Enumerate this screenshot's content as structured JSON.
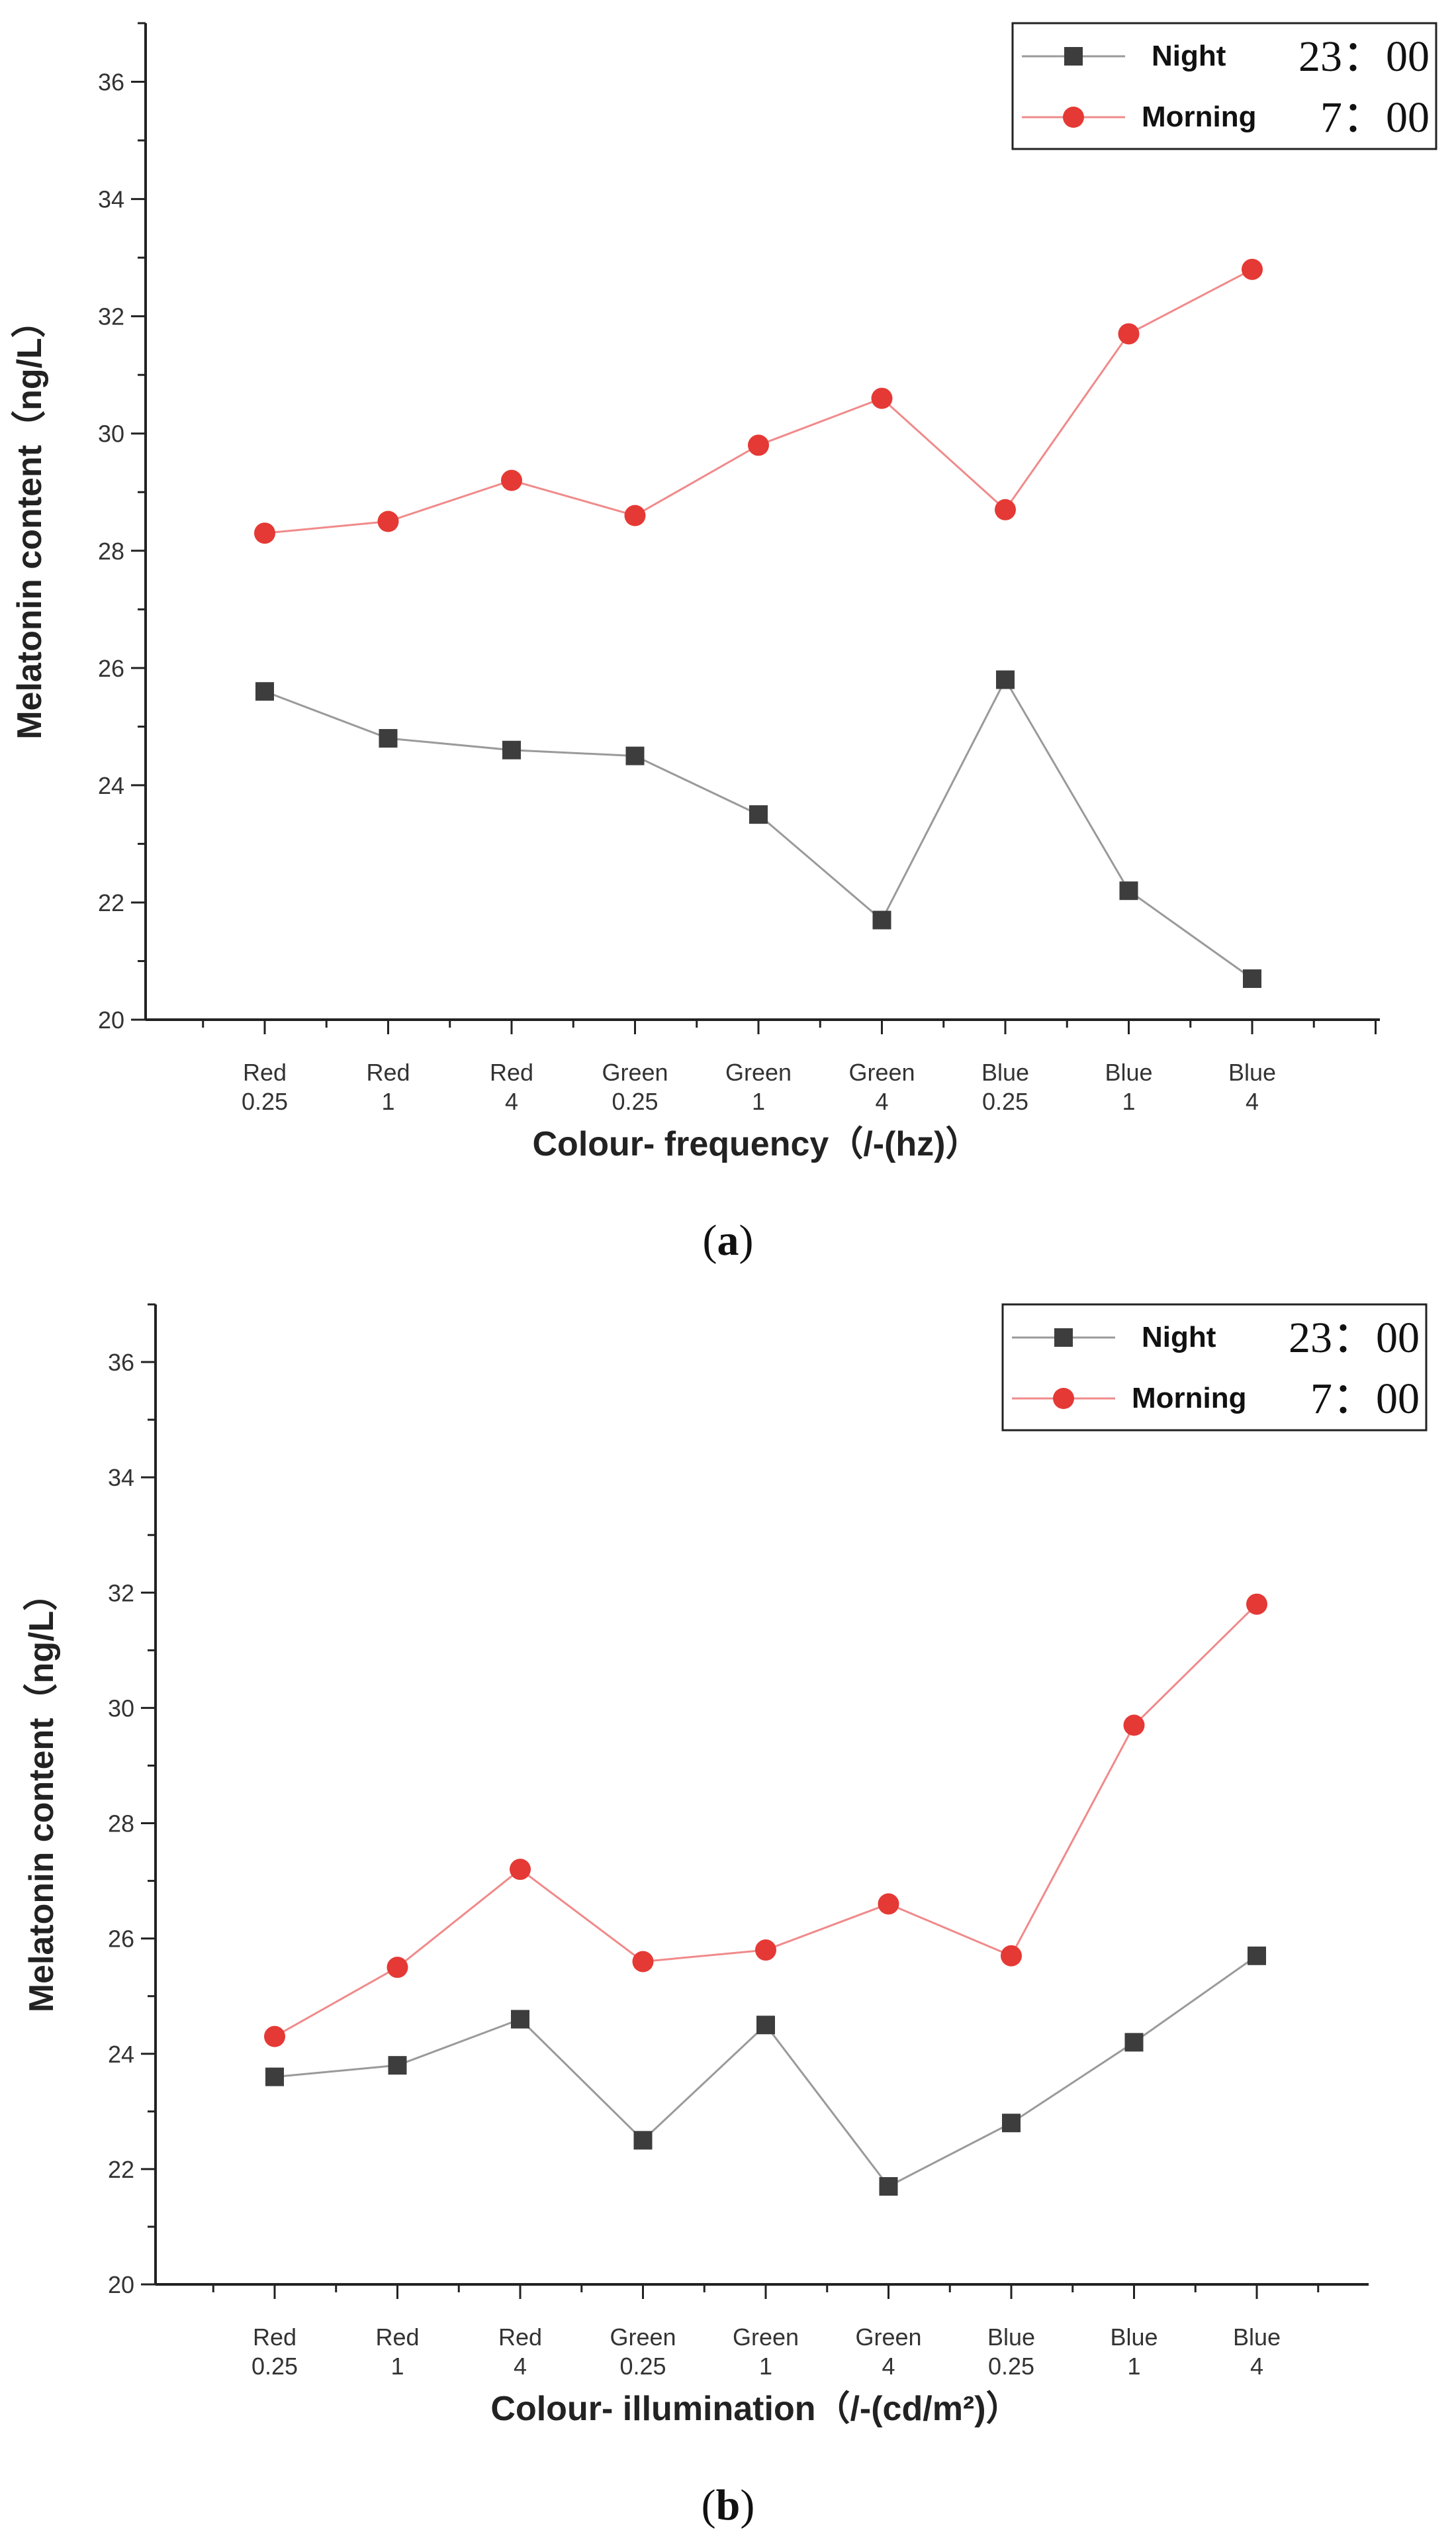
{
  "chart_data": [
    {
      "type": "line",
      "caption_prefix": "(",
      "caption_letter": "a",
      "caption_suffix": ")",
      "xlabel": "Colour- frequency（/-(hz)）",
      "ylabel": "Melatonin content（ng/L）",
      "ylim": [
        20,
        37
      ],
      "yticks": [
        20,
        22,
        24,
        26,
        28,
        30,
        32,
        34,
        36
      ],
      "categories": [
        [
          "Red",
          "0.25"
        ],
        [
          "Red",
          "1"
        ],
        [
          "Red",
          "4"
        ],
        [
          "Green",
          "0.25"
        ],
        [
          "Green",
          "1"
        ],
        [
          "Green",
          "4"
        ],
        [
          "Blue",
          "0.25"
        ],
        [
          "Blue",
          "1"
        ],
        [
          "Blue",
          "4"
        ]
      ],
      "series": [
        {
          "name": "Night",
          "time": "23：00",
          "marker": "square",
          "color": "#9a9a9a",
          "marker_color": "#3d3d3d",
          "values": [
            25.6,
            24.8,
            24.6,
            24.5,
            23.5,
            21.7,
            25.8,
            22.2,
            20.7
          ]
        },
        {
          "name": "Morning",
          "time": "7：00",
          "marker": "circle",
          "color": "#f08a8a",
          "marker_color": "#e53935",
          "values": [
            28.3,
            28.5,
            29.2,
            28.6,
            29.8,
            30.6,
            28.7,
            31.7,
            32.8
          ]
        }
      ],
      "legend_position": "top-right"
    },
    {
      "type": "line",
      "caption_prefix": "(",
      "caption_letter": "b",
      "caption_suffix": ")",
      "xlabel": "Colour- illumination（/-(cd/m²)）",
      "ylabel": "Melatonin content（ng/L）",
      "ylim": [
        20,
        37
      ],
      "yticks": [
        20,
        22,
        24,
        26,
        28,
        30,
        32,
        34,
        36
      ],
      "categories": [
        [
          "Red",
          "0.25"
        ],
        [
          "Red",
          "1"
        ],
        [
          "Red",
          "4"
        ],
        [
          "Green",
          "0.25"
        ],
        [
          "Green",
          "1"
        ],
        [
          "Green",
          "4"
        ],
        [
          "Blue",
          "0.25"
        ],
        [
          "Blue",
          "1"
        ],
        [
          "Blue",
          "4"
        ]
      ],
      "series": [
        {
          "name": "Night",
          "time": "23：00",
          "marker": "square",
          "color": "#9a9a9a",
          "marker_color": "#3d3d3d",
          "values": [
            23.6,
            23.8,
            24.6,
            22.5,
            24.5,
            21.7,
            22.8,
            24.2,
            25.7
          ]
        },
        {
          "name": "Morning",
          "time": "7：00",
          "marker": "circle",
          "color": "#f08a8a",
          "marker_color": "#e53935",
          "values": [
            24.3,
            25.5,
            27.2,
            25.6,
            25.8,
            26.6,
            25.7,
            29.7,
            31.8
          ]
        }
      ],
      "legend_position": "top-right"
    }
  ]
}
